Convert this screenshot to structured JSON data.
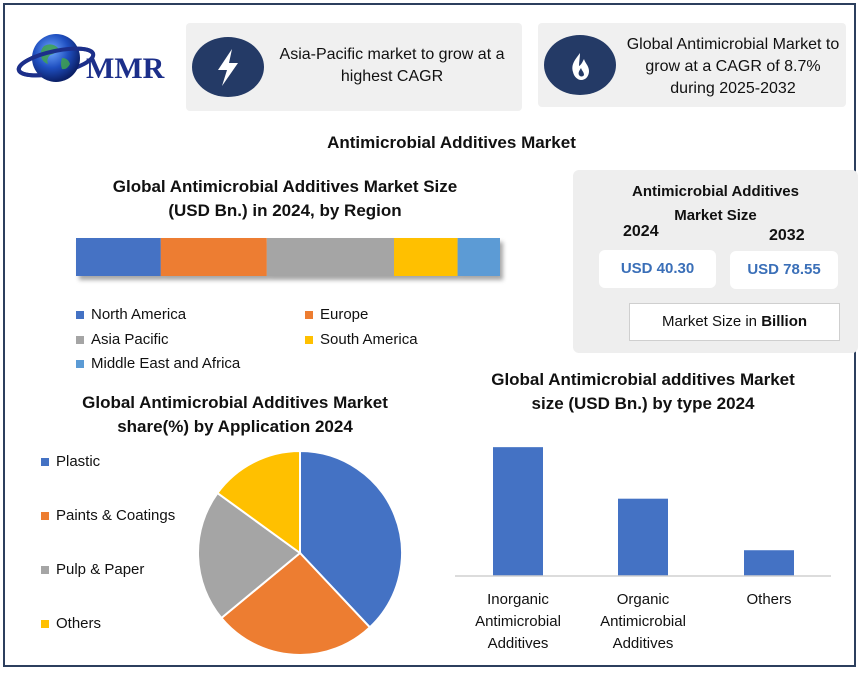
{
  "logo": {
    "text": "MMR"
  },
  "info_boxes": [
    {
      "text": "Asia-Pacific market to grow at a highest CAGR",
      "icon": "lightning-icon"
    },
    {
      "text": "Global Antimicrobial Market to grow at a CAGR of 8.7% during 2025-2032",
      "icon": "flame-icon"
    }
  ],
  "main_title": "Antimicrobial Additives Market",
  "market_size": {
    "title_line1": "Antimicrobial Additives",
    "title_line2": "Market Size",
    "year1": "2024",
    "year2": "2032",
    "value1": "USD 40.30",
    "value2": "USD 78.55",
    "unit_prefix": "Market Size in ",
    "unit_bold": "Billion"
  },
  "colors": {
    "blue": "#4472c4",
    "orange": "#ed7d31",
    "gray": "#a5a5a5",
    "yellow": "#ffc000",
    "light_blue": "#5b9bd5",
    "navy": "#243a66"
  },
  "chart_data": [
    {
      "type": "bar",
      "orientation": "horizontal-stacked",
      "title_line1": "Global Antimicrobial Additives Market Size",
      "title_line2": "(USD Bn.) in 2024, by Region",
      "series": [
        {
          "name": "North America",
          "value": 20,
          "color": "#4472c4"
        },
        {
          "name": "Europe",
          "value": 25,
          "color": "#ed7d31"
        },
        {
          "name": "Asia Pacific",
          "value": 30,
          "color": "#a5a5a5"
        },
        {
          "name": "South America",
          "value": 15,
          "color": "#ffc000"
        },
        {
          "name": "Middle East and Africa",
          "value": 10,
          "color": "#5b9bd5"
        }
      ],
      "legend_position": "bottom"
    },
    {
      "type": "pie",
      "title_line1": "Global Antimicrobial Additives Market",
      "title_line2": "share(%) by Application 2024",
      "slices": [
        {
          "name": "Plastic",
          "value": 38,
          "color": "#4472c4"
        },
        {
          "name": "Paints & Coatings",
          "value": 26,
          "color": "#ed7d31"
        },
        {
          "name": "Pulp & Paper",
          "value": 21,
          "color": "#a5a5a5"
        },
        {
          "name": "Others",
          "value": 15,
          "color": "#ffc000"
        }
      ],
      "legend_position": "left"
    },
    {
      "type": "bar",
      "title_line1": "Global Antimicrobial additives Market",
      "title_line2": "size (USD Bn.) by type 2024",
      "categories": [
        [
          "Inorganic",
          "Antimicrobial",
          "Additives"
        ],
        [
          "Organic",
          "Antimicrobial",
          "Additives"
        ],
        [
          "Others"
        ]
      ],
      "values": [
        25,
        15,
        5
      ],
      "ylim": [
        0,
        26
      ],
      "color": "#4472c4",
      "grid": false
    }
  ]
}
